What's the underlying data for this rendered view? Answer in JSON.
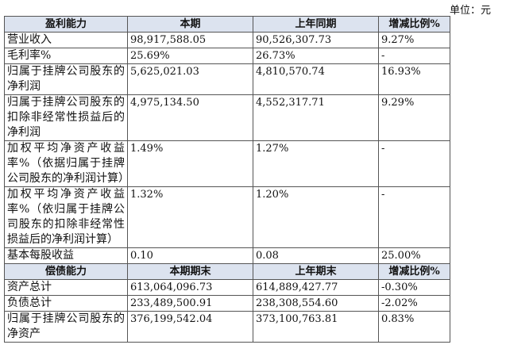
{
  "unit": "单位：元",
  "sections": [
    {
      "header": [
        "盈利能力",
        "本期",
        "上年同期",
        "增减比例%"
      ],
      "rows": [
        [
          "营业收入",
          "98,917,588.05",
          "90,526,307.73",
          "9.27%"
        ],
        [
          "毛利率%",
          "25.69%",
          "26.73%",
          "-"
        ],
        [
          "归属于挂牌公司股东的净利润",
          "5,625,021.03",
          "4,810,570.74",
          "16.93%"
        ],
        [
          "归属于挂牌公司股东的扣除非经常性损益后的净利润",
          "4,975,134.50",
          "4,552,317.71",
          "9.29%"
        ],
        [
          "加权平均净资产收益率%（依据归属于挂牌公司股东的净利润计算）",
          "1.49%",
          "1.27%",
          "-"
        ],
        [
          "加权平均净资产收益率%（依归属于挂牌公司股东的扣除非经常性损益后的净利润计算）",
          "1.32%",
          "1.20%",
          "-"
        ],
        [
          "基本每股收益",
          "0.10",
          "0.08",
          "25.00%"
        ]
      ]
    },
    {
      "header": [
        "偿债能力",
        "本期期末",
        "上年期末",
        "增减比例%"
      ],
      "rows": [
        [
          "资产总计",
          "613,064,096.73",
          "614,889,427.77",
          "-0.30%"
        ],
        [
          "负债总计",
          "233,489,500.91",
          "238,308,554.60",
          "-2.02%"
        ],
        [
          "归属于挂牌公司股东的净资产",
          "376,199,542.04",
          "373,100,763.81",
          "0.83%"
        ]
      ]
    }
  ]
}
